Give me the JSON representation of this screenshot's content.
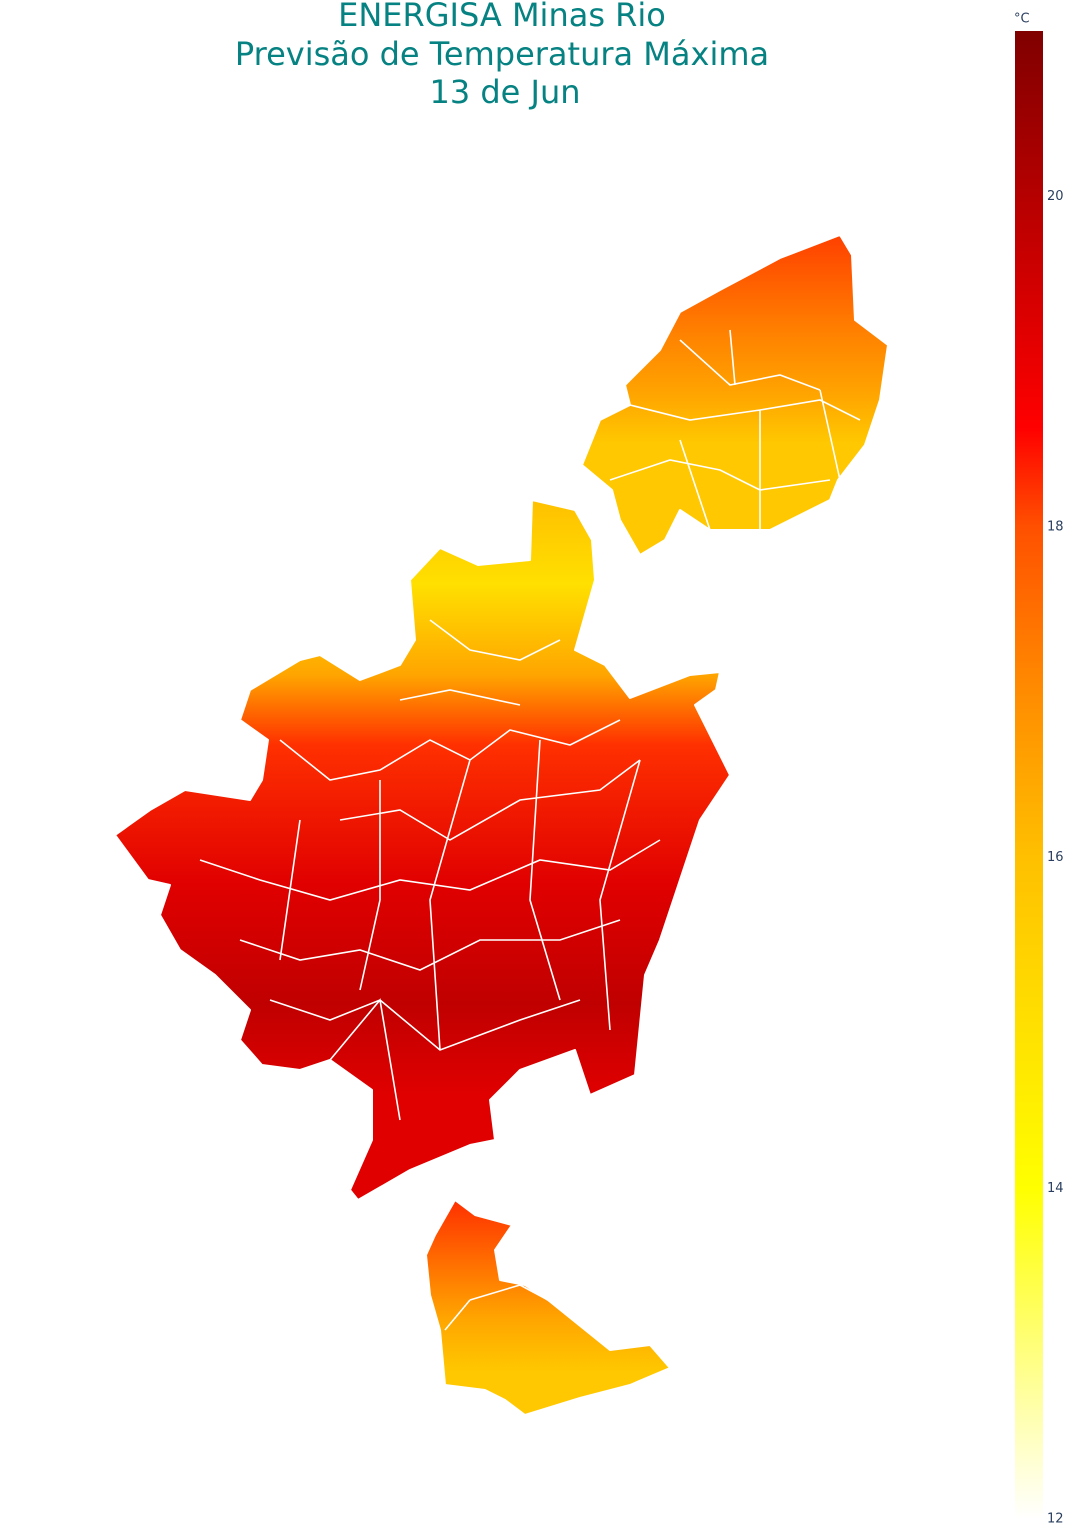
{
  "chart_data": {
    "type": "choropleth",
    "title": [
      "ENERGISA Minas Rio",
      "Previsão de Temperatura Máxima",
      "13 de Jun"
    ],
    "colorbar": {
      "title": "°C",
      "range": [
        12,
        21
      ],
      "ticks": [
        12,
        14,
        16,
        18,
        20
      ],
      "colorscale": [
        [
          12,
          "#ffffff"
        ],
        [
          14,
          "#ffff00"
        ],
        [
          16,
          "#ffc000"
        ],
        [
          17,
          "#ff8c00"
        ],
        [
          18,
          "#ff5000"
        ],
        [
          18.6,
          "#ff0000"
        ],
        [
          21,
          "#800000"
        ]
      ]
    }
  }
}
